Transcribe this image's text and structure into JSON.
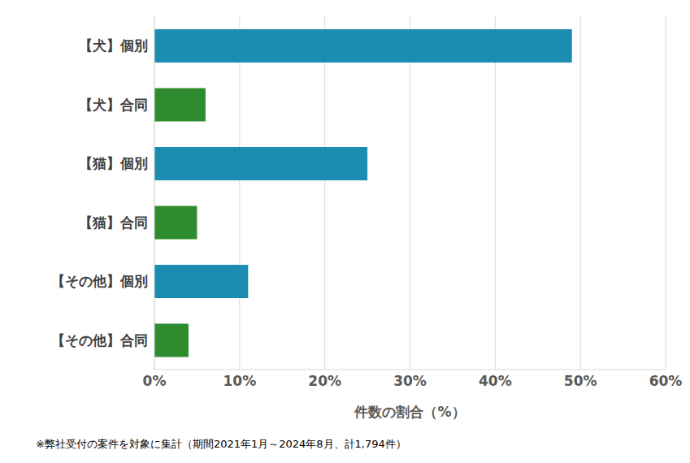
{
  "chart_data": {
    "type": "bar",
    "orientation": "horizontal",
    "categories": [
      "【犬】個別",
      "【犬】合同",
      "【猫】個別",
      "【猫】合同",
      "【その他】個別",
      "【その他】合同"
    ],
    "values": [
      49,
      6,
      25,
      5,
      11,
      4
    ],
    "colors": [
      "#1a8db1",
      "#2e8b2e",
      "#1a8db1",
      "#2e8b2e",
      "#1a8db1",
      "#2e8b2e"
    ],
    "xlabel": "件数の割合（%）",
    "xlim": [
      0,
      60
    ],
    "xticks": [
      {
        "value": 0,
        "label": "0%"
      },
      {
        "value": 10,
        "label": "10%"
      },
      {
        "value": 20,
        "label": "20%"
      },
      {
        "value": 30,
        "label": "30%"
      },
      {
        "value": 40,
        "label": "40%"
      },
      {
        "value": 50,
        "label": "50%"
      },
      {
        "value": 60,
        "label": "60%"
      }
    ],
    "grid": true,
    "note": "※弊社受付の案件を対象に集計（期間2021年1月～2024年8月、計1,794件）"
  }
}
